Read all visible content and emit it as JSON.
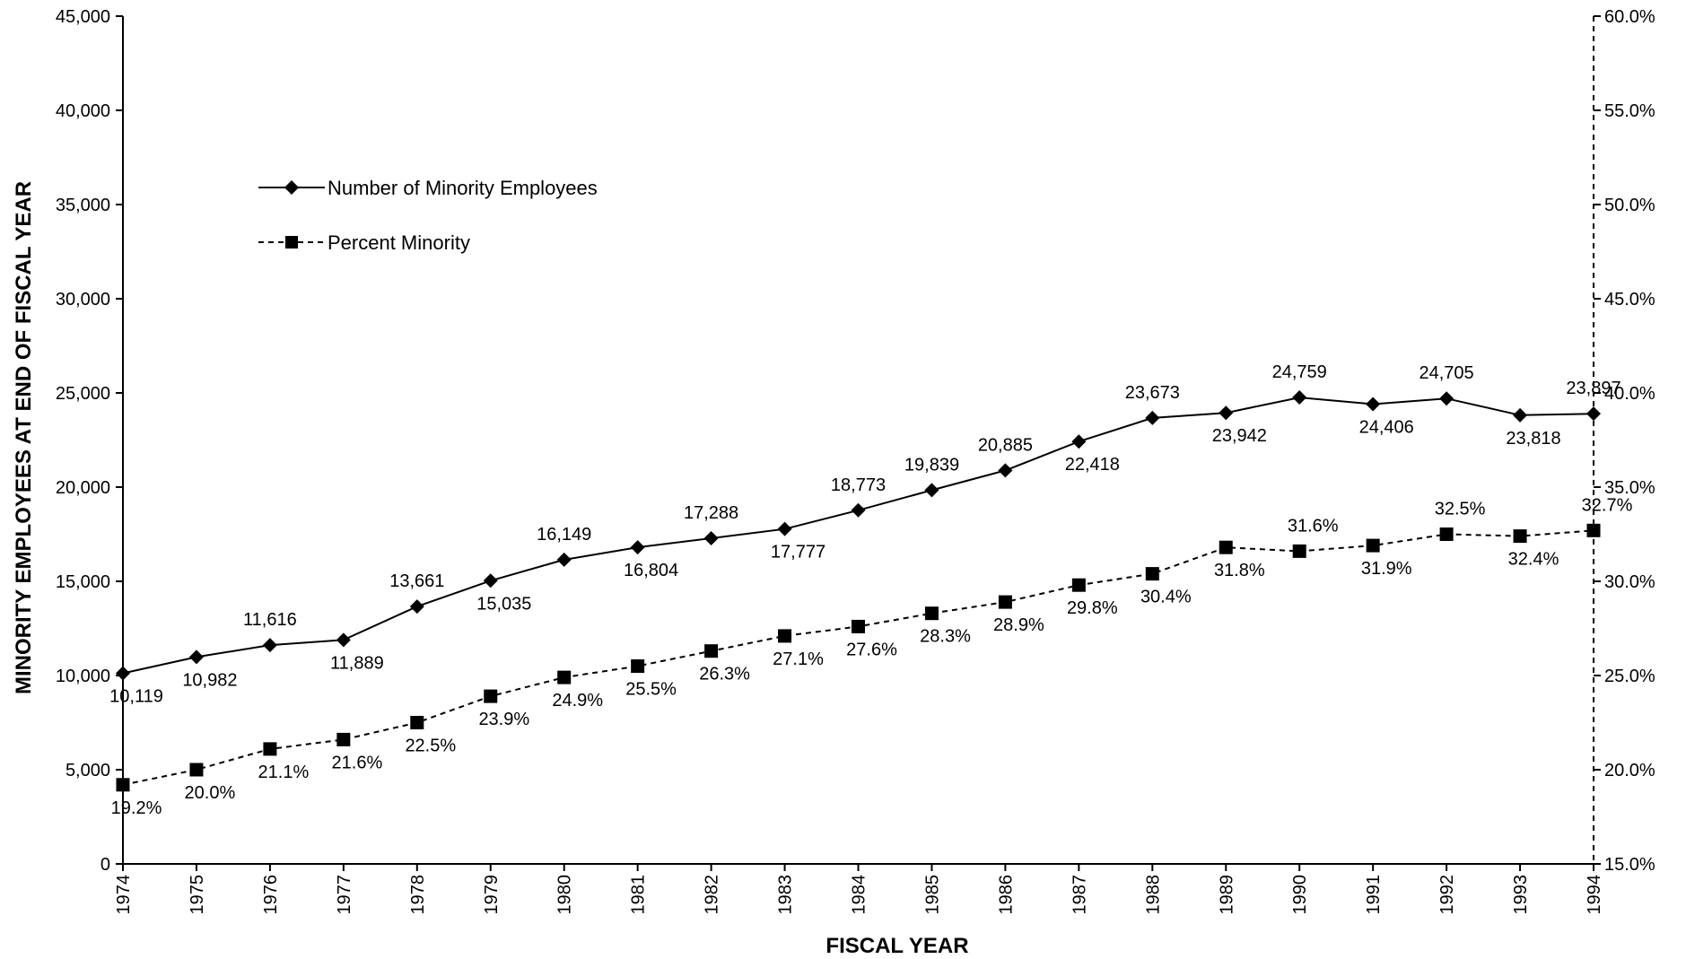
{
  "chart_data": {
    "type": "line",
    "x": [
      1974,
      1975,
      1976,
      1977,
      1978,
      1979,
      1980,
      1981,
      1982,
      1983,
      1984,
      1985,
      1986,
      1987,
      1988,
      1989,
      1990,
      1991,
      1992,
      1993,
      1994
    ],
    "xlabel": "FISCAL YEAR",
    "ylabel": "MINORITY EMPLOYEES AT END OF FISCAL YEAR",
    "ylim": [
      0,
      45000
    ],
    "y2lim": [
      15.0,
      60.0
    ],
    "yticks": [
      "0",
      "5,000",
      "10,000",
      "15,000",
      "20,000",
      "25,000",
      "30,000",
      "35,000",
      "40,000",
      "45,000"
    ],
    "y2ticks": [
      "15.0%",
      "20.0%",
      "25.0%",
      "30.0%",
      "35.0%",
      "40.0%",
      "45.0%",
      "50.0%",
      "55.0%",
      "60.0%"
    ],
    "legend_position": "upper-left",
    "series": [
      {
        "name": "Number of Minority Employees",
        "axis": "left",
        "marker": "diamond",
        "line_style": "solid",
        "values": [
          10119,
          10982,
          11616,
          11889,
          13661,
          15035,
          16149,
          16804,
          17288,
          17777,
          18773,
          19839,
          20885,
          22418,
          23673,
          23942,
          24759,
          24406,
          24705,
          23818,
          23897
        ],
        "labels": [
          "10,119",
          "10,982",
          "11,616",
          "11,889",
          "13,661",
          "15,035",
          "16,149",
          "16,804",
          "17,288",
          "17,777",
          "18,773",
          "19,839",
          "20,885",
          "22,418",
          "23,673",
          "23,942",
          "24,759",
          "24,406",
          "24,705",
          "23,818",
          "23,897"
        ],
        "label_side": [
          "below",
          "below",
          "above",
          "below",
          "above",
          "below",
          "above",
          "below",
          "above",
          "below",
          "above",
          "above",
          "above",
          "below",
          "above",
          "below",
          "above",
          "below",
          "above",
          "below",
          "above"
        ]
      },
      {
        "name": "Percent Minority",
        "axis": "right",
        "marker": "square",
        "line_style": "dashed",
        "values": [
          19.2,
          20.0,
          21.1,
          21.6,
          22.5,
          23.9,
          24.9,
          25.5,
          26.3,
          27.1,
          27.6,
          28.3,
          28.9,
          29.8,
          30.4,
          31.8,
          31.6,
          31.9,
          32.5,
          32.4,
          32.7
        ],
        "labels": [
          "19.2%",
          "20.0%",
          "21.1%",
          "21.6%",
          "22.5%",
          "23.9%",
          "24.9%",
          "25.5%",
          "26.3%",
          "27.1%",
          "27.6%",
          "28.3%",
          "28.9%",
          "29.8%",
          "30.4%",
          "31.8%",
          "31.6%",
          "31.9%",
          "32.5%",
          "32.4%",
          "32.7%"
        ],
        "label_side": [
          "below",
          "below",
          "below",
          "below",
          "below",
          "below",
          "below",
          "below",
          "below",
          "below",
          "below",
          "below",
          "below",
          "below",
          "below",
          "below",
          "above",
          "below",
          "above",
          "below",
          "above"
        ]
      }
    ]
  }
}
